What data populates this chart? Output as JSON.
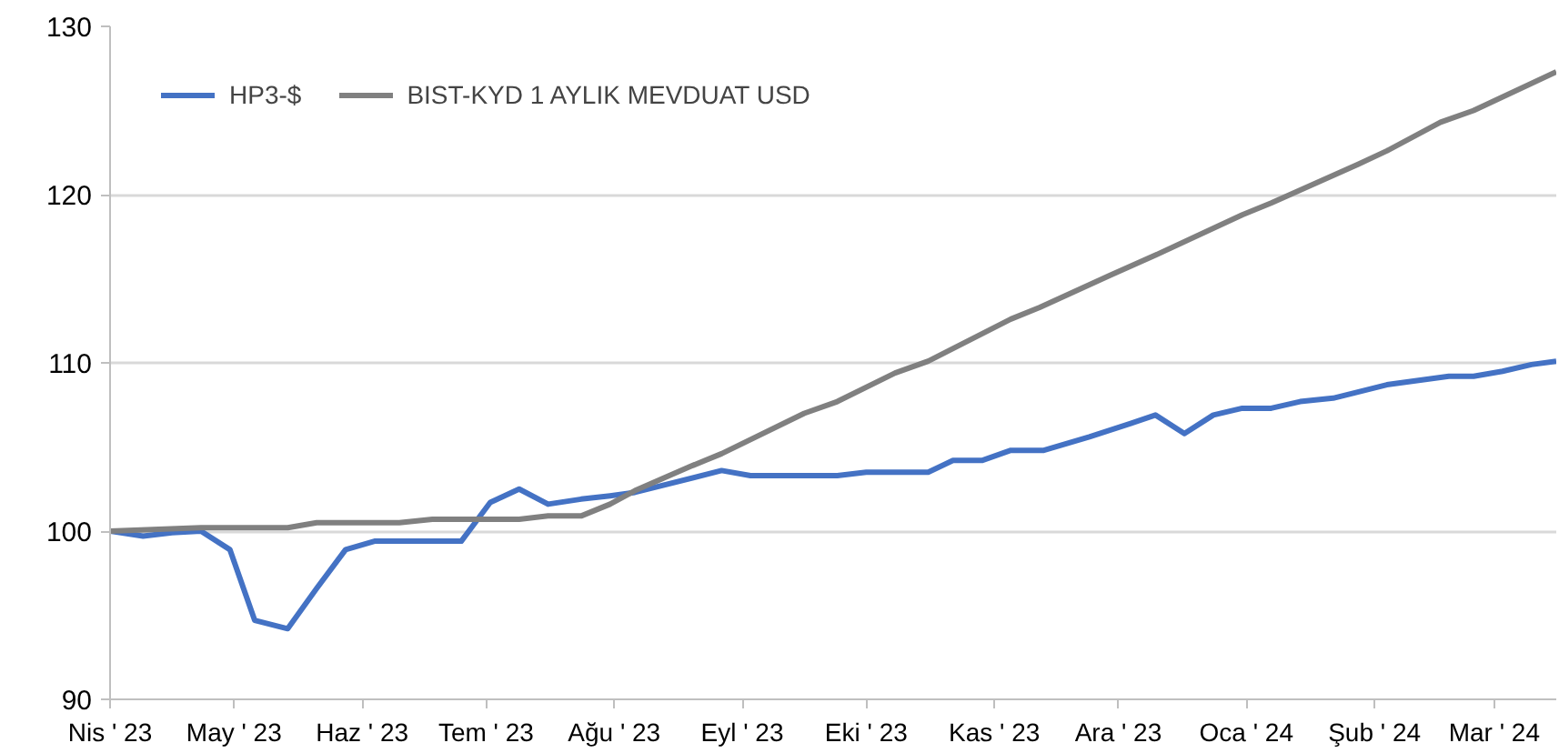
{
  "chart_data": {
    "type": "line",
    "xlim": [
      "2023-04-01",
      "2024-03-16"
    ],
    "ylim": [
      90,
      130
    ],
    "yticks": [
      90,
      100,
      110,
      120,
      130
    ],
    "xticks": [
      {
        "value": "2023-04-01",
        "label": "Nis ' 23"
      },
      {
        "value": "2023-05-01",
        "label": "May ' 23"
      },
      {
        "value": "2023-06-01",
        "label": "Haz ' 23"
      },
      {
        "value": "2023-07-01",
        "label": "Tem ' 23"
      },
      {
        "value": "2023-08-01",
        "label": "Ağu ' 23"
      },
      {
        "value": "2023-09-01",
        "label": "Eyl ' 23"
      },
      {
        "value": "2023-10-01",
        "label": "Eki ' 23"
      },
      {
        "value": "2023-11-01",
        "label": "Kas ' 23"
      },
      {
        "value": "2023-12-01",
        "label": "Ara ' 23"
      },
      {
        "value": "2024-01-01",
        "label": "Oca ' 24"
      },
      {
        "value": "2024-02-01",
        "label": "Şub ' 24"
      },
      {
        "value": "2024-03-01",
        "label": "Mar ' 24"
      }
    ],
    "grid": "y",
    "legend": "top left",
    "marker": "none",
    "line_style": "solid",
    "series": [
      {
        "name": "HP3-$",
        "color": "#4472c4",
        "x": [
          "2023-04-01",
          "2023-04-09",
          "2023-04-16",
          "2023-04-23",
          "2023-04-30",
          "2023-05-06",
          "2023-05-14",
          "2023-05-21",
          "2023-05-28",
          "2023-06-04",
          "2023-06-25",
          "2023-07-02",
          "2023-07-09",
          "2023-07-16",
          "2023-07-24",
          "2023-07-31",
          "2023-08-06",
          "2023-08-27",
          "2023-09-03",
          "2023-09-24",
          "2023-10-01",
          "2023-10-16",
          "2023-10-22",
          "2023-10-29",
          "2023-11-05",
          "2023-11-13",
          "2023-11-24",
          "2023-12-04",
          "2023-12-10",
          "2023-12-17",
          "2023-12-24",
          "2023-12-31",
          "2024-01-07",
          "2024-01-14",
          "2024-01-22",
          "2024-02-04",
          "2024-02-19",
          "2024-02-25",
          "2024-03-03",
          "2024-03-10",
          "2024-03-16"
        ],
        "values": [
          100,
          99.7,
          99.9,
          100,
          98.9,
          94.7,
          94.2,
          96.6,
          98.9,
          99.4,
          99.4,
          101.7,
          102.5,
          101.6,
          101.9,
          102.1,
          102.3,
          103.6,
          103.3,
          103.3,
          103.5,
          103.5,
          104.2,
          104.2,
          104.8,
          104.8,
          105.6,
          106.4,
          106.9,
          105.8,
          106.9,
          107.3,
          107.3,
          107.7,
          107.9,
          108.7,
          109.2,
          109.2,
          109.5,
          109.9,
          110.1
        ]
      },
      {
        "name": "BIST-KYD 1 AYLIK MEVDUAT USD",
        "color": "#808080",
        "x": [
          "2023-04-01",
          "2023-04-23",
          "2023-05-14",
          "2023-05-21",
          "2023-06-10",
          "2023-06-18",
          "2023-07-09",
          "2023-07-16",
          "2023-07-24",
          "2023-07-31",
          "2023-08-06",
          "2023-08-20",
          "2023-08-27",
          "2023-09-16",
          "2023-09-24",
          "2023-10-08",
          "2023-10-16",
          "2023-11-05",
          "2023-11-12",
          "2023-11-29",
          "2023-12-10",
          "2023-12-31",
          "2024-01-07",
          "2024-01-28",
          "2024-02-04",
          "2024-02-17",
          "2024-02-25",
          "2024-03-16"
        ],
        "values": [
          100,
          100.2,
          100.2,
          100.5,
          100.5,
          100.7,
          100.7,
          100.9,
          100.9,
          101.6,
          102.4,
          103.9,
          104.6,
          107.0,
          107.7,
          109.4,
          110.1,
          112.6,
          113.3,
          115.2,
          116.4,
          118.8,
          119.5,
          121.8,
          122.6,
          124.3,
          125.0,
          127.3
        ]
      }
    ]
  }
}
